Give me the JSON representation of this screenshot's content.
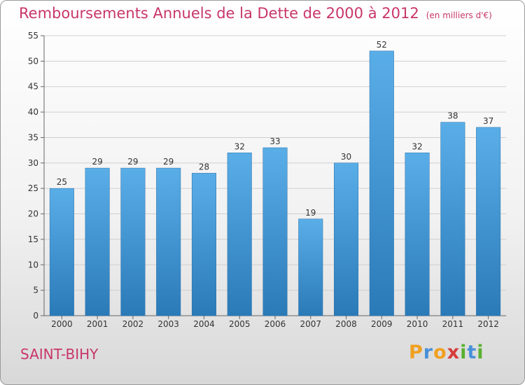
{
  "header": {
    "title": "Remboursements Annuels de la Dette de 2000 à 2012",
    "unit": "(en milliers d'€)"
  },
  "commune": "SAINT-BIHY",
  "logo": {
    "text": "Proxiti",
    "letters": [
      {
        "char": "P",
        "color": "#f0a020"
      },
      {
        "char": "r",
        "color": "#4a90d9"
      },
      {
        "char": "o",
        "color": "#f0a020"
      },
      {
        "char": "x",
        "color": "#d63a3a"
      },
      {
        "char": "i",
        "color": "#5ab030"
      },
      {
        "char": "t",
        "color": "#4a90d9"
      },
      {
        "char": "i",
        "color": "#5ab030"
      }
    ]
  },
  "chart_data": {
    "type": "bar",
    "title": "Remboursements Annuels de la Dette de 2000 à 2012",
    "subtitle": "(en milliers d'€)",
    "categories": [
      "2000",
      "2001",
      "2002",
      "2003",
      "2004",
      "2005",
      "2006",
      "2007",
      "2008",
      "2009",
      "2010",
      "2011",
      "2012"
    ],
    "values": [
      25,
      29,
      29,
      29,
      28,
      32,
      33,
      19,
      30,
      52,
      32,
      38,
      37
    ],
    "ylim": [
      0,
      55
    ],
    "yticks": [
      0,
      5,
      10,
      15,
      20,
      25,
      30,
      35,
      40,
      45,
      50,
      55
    ],
    "grid": true,
    "bar_color_top": "#5aaee8",
    "bar_color_bottom": "#2a7ab8"
  }
}
